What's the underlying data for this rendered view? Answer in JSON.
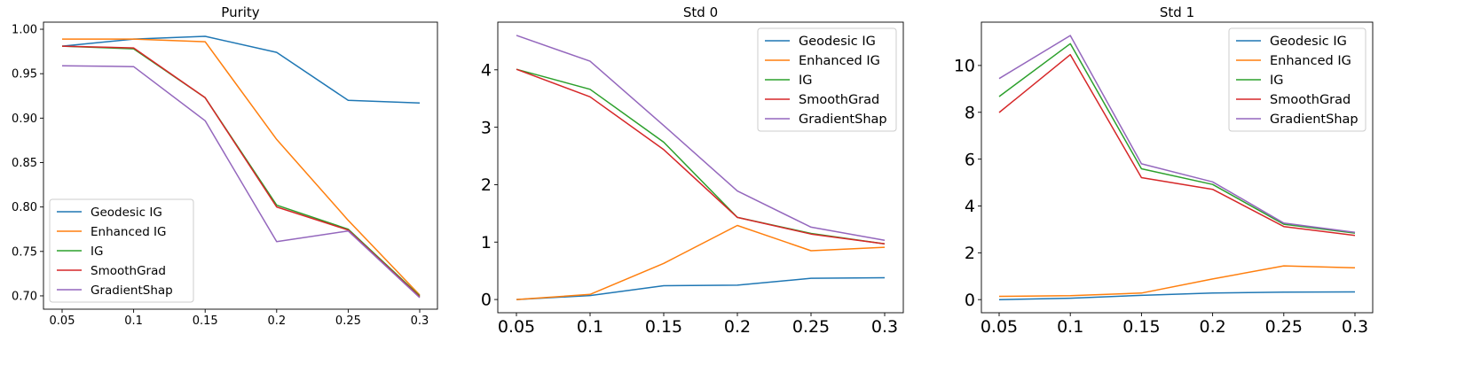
{
  "colors": {
    "Geodesic IG": "#1f77b4",
    "Enhanced IG": "#ff7f0e",
    "IG": "#2ca02c",
    "SmoothGrad": "#d62728",
    "GradientShap": "#9467bd"
  },
  "chart_data": [
    {
      "type": "line",
      "title": "Purity",
      "x": [
        0.05,
        0.1,
        0.15,
        0.2,
        0.25,
        0.3
      ],
      "x_tick_labels": [
        "0.05",
        "0.1",
        "0.15",
        "0.2",
        "0.25",
        "0.3"
      ],
      "ylim": [
        0.685,
        1.008
      ],
      "y_ticks": [
        0.7,
        0.75,
        0.8,
        0.85,
        0.9,
        0.95,
        1.0
      ],
      "y_tick_labels": [
        "0.70",
        "0.75",
        "0.80",
        "0.85",
        "0.90",
        "0.95",
        "1.00"
      ],
      "legend": "lower-left",
      "series": [
        {
          "name": "Geodesic IG",
          "values": [
            0.981,
            0.989,
            0.992,
            0.974,
            0.92,
            0.917
          ]
        },
        {
          "name": "Enhanced IG",
          "values": [
            0.989,
            0.989,
            0.986,
            0.876,
            0.785,
            0.701
          ]
        },
        {
          "name": "IG",
          "values": [
            0.981,
            0.978,
            0.923,
            0.802,
            0.775,
            0.7
          ]
        },
        {
          "name": "SmoothGrad",
          "values": [
            0.981,
            0.979,
            0.923,
            0.8,
            0.774,
            0.699
          ]
        },
        {
          "name": "GradientShap",
          "values": [
            0.959,
            0.958,
            0.897,
            0.761,
            0.773,
            0.698
          ]
        }
      ]
    },
    {
      "type": "line",
      "title": "Std 0",
      "x": [
        0.05,
        0.1,
        0.15,
        0.2,
        0.25,
        0.3
      ],
      "x_tick_labels": [
        "0.05",
        "0.1",
        "0.15",
        "0.2",
        "0.25",
        "0.3"
      ],
      "ylim": [
        -0.23,
        4.83
      ],
      "y_ticks": [
        0,
        1,
        2,
        3,
        4
      ],
      "y_tick_labels": [
        "0",
        "1",
        "2",
        "3",
        "4"
      ],
      "legend": "top-right",
      "series": [
        {
          "name": "Geodesic IG",
          "values": [
            0.0,
            0.07,
            0.24,
            0.25,
            0.37,
            0.38
          ]
        },
        {
          "name": "Enhanced IG",
          "values": [
            0.0,
            0.09,
            0.63,
            1.29,
            0.85,
            0.91
          ]
        },
        {
          "name": "IG",
          "values": [
            4.01,
            3.66,
            2.74,
            1.43,
            1.15,
            0.97
          ]
        },
        {
          "name": "SmoothGrad",
          "values": [
            4.01,
            3.53,
            2.61,
            1.43,
            1.14,
            0.97
          ]
        },
        {
          "name": "GradientShap",
          "values": [
            4.6,
            4.15,
            3.03,
            1.89,
            1.26,
            1.03
          ]
        }
      ]
    },
    {
      "type": "line",
      "title": "Std 1",
      "x": [
        0.05,
        0.1,
        0.15,
        0.2,
        0.25,
        0.3
      ],
      "x_tick_labels": [
        "0.05",
        "0.1",
        "0.15",
        "0.2",
        "0.25",
        "0.3"
      ],
      "ylim": [
        -0.56,
        11.85
      ],
      "y_ticks": [
        0,
        2,
        4,
        6,
        8,
        10
      ],
      "y_tick_labels": [
        "0",
        "2",
        "4",
        "6",
        "8",
        "10"
      ],
      "legend": "top-right",
      "series": [
        {
          "name": "Geodesic IG",
          "values": [
            0.0,
            0.06,
            0.18,
            0.28,
            0.32,
            0.33
          ]
        },
        {
          "name": "Enhanced IG",
          "values": [
            0.14,
            0.17,
            0.28,
            0.88,
            1.44,
            1.36
          ]
        },
        {
          "name": "IG",
          "values": [
            8.67,
            10.93,
            5.59,
            4.92,
            3.22,
            2.84
          ]
        },
        {
          "name": "SmoothGrad",
          "values": [
            7.99,
            10.46,
            5.21,
            4.71,
            3.12,
            2.74
          ]
        },
        {
          "name": "GradientShap",
          "values": [
            9.44,
            11.28,
            5.8,
            5.03,
            3.27,
            2.87
          ]
        }
      ]
    }
  ]
}
